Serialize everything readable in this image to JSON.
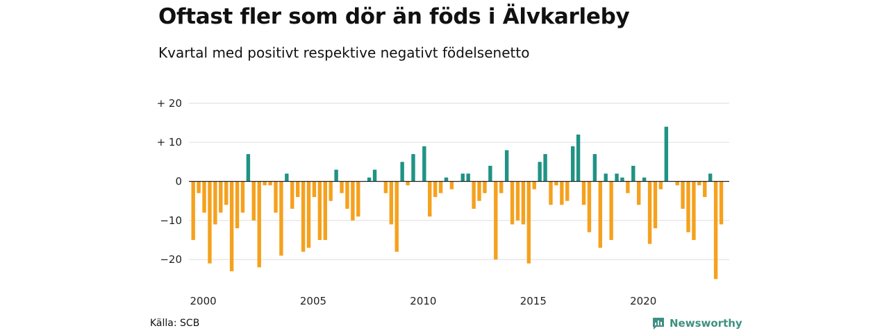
{
  "title": "Oftast fler som dör än föds i Älvkarleby",
  "subtitle": "Kvartal med positivt respektive negativt födelsenetto",
  "source": "Källa: SCB",
  "brand": {
    "name": "Newsworthy",
    "icon": "newsworthy-logo-icon"
  },
  "colors": {
    "positive": "#1f9384",
    "negative": "#f5a11e",
    "grid": "#dddddd",
    "zero_line": "#222222"
  },
  "chart_data": {
    "type": "bar",
    "title": "Oftast fler som dör än föds i Älvkarleby",
    "subtitle": "Kvartal med positivt respektive negativt födelsenetto",
    "xlabel": "",
    "ylabel": "",
    "x_start_year": 2000,
    "periods_per_year": 4,
    "x_ticks": [
      "2000",
      "2005",
      "2010",
      "2015",
      "2020"
    ],
    "x_tick_years": [
      2000,
      2005,
      2010,
      2015,
      2020
    ],
    "y_ticks": [
      20,
      10,
      0,
      -10,
      -20
    ],
    "y_tick_labels": [
      "+ 20",
      "+ 10",
      "0",
      "−10",
      "−20"
    ],
    "ylim": [
      -27,
      23
    ],
    "grid": true,
    "values": [
      -15,
      -3,
      -8,
      -21,
      -11,
      -8,
      -6,
      -23,
      -12,
      -8,
      7,
      -10,
      -22,
      -1,
      -1,
      -8,
      -19,
      2,
      -7,
      -4,
      -18,
      -17,
      -4,
      -15,
      -15,
      -5,
      3,
      -3,
      -7,
      -10,
      -9,
      0,
      1,
      3,
      0,
      -3,
      -11,
      -18,
      5,
      -1,
      7,
      0,
      9,
      -9,
      -4,
      -3,
      1,
      -2,
      0,
      2,
      2,
      -7,
      -5,
      -3,
      4,
      -20,
      -3,
      8,
      -11,
      -10,
      -11,
      -21,
      -2,
      5,
      7,
      -6,
      -1,
      -6,
      -5,
      9,
      12,
      -6,
      -13,
      7,
      -17,
      2,
      -15,
      2,
      1,
      -3,
      4,
      -6,
      1,
      -16,
      -12,
      -2,
      14,
      0,
      -1,
      -7,
      -13,
      -15,
      -1,
      -4,
      2,
      -25,
      -11
    ]
  }
}
